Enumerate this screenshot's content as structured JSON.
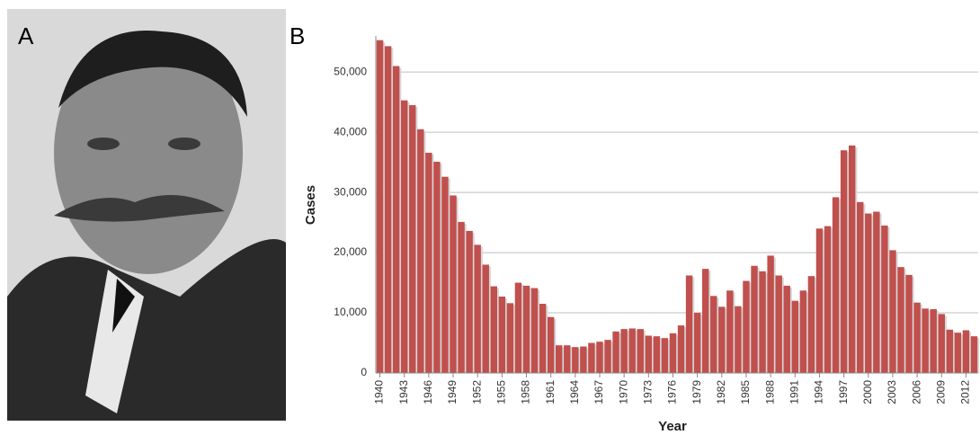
{
  "panel_labels": [
    "A",
    "B"
  ],
  "chart_data": {
    "type": "bar",
    "xlabel": "Year",
    "ylabel": "Cases",
    "x": [
      1940,
      1941,
      1942,
      1943,
      1944,
      1945,
      1946,
      1947,
      1948,
      1949,
      1950,
      1951,
      1952,
      1953,
      1954,
      1955,
      1956,
      1957,
      1958,
      1959,
      1960,
      1961,
      1962,
      1963,
      1964,
      1965,
      1966,
      1967,
      1968,
      1969,
      1970,
      1971,
      1972,
      1973,
      1974,
      1975,
      1976,
      1977,
      1978,
      1979,
      1980,
      1981,
      1982,
      1983,
      1984,
      1985,
      1986,
      1987,
      1988,
      1989,
      1990,
      1991,
      1992,
      1993,
      1994,
      1995,
      1996,
      1997,
      1998,
      1999,
      2000,
      2001,
      2002,
      2003,
      2004,
      2005,
      2006,
      2007,
      2008,
      2009,
      2010,
      2011,
      2012,
      2013
    ],
    "values": [
      55300,
      54300,
      51000,
      45300,
      44500,
      40500,
      36600,
      35100,
      32600,
      29500,
      25100,
      23600,
      21300,
      18000,
      14400,
      12700,
      11600,
      15000,
      14500,
      14100,
      11500,
      9300,
      4600,
      4600,
      4300,
      4400,
      5000,
      5200,
      5500,
      6900,
      7300,
      7400,
      7300,
      6200,
      6100,
      5800,
      6600,
      7900,
      16200,
      10000,
      17300,
      12800,
      11000,
      13700,
      11100,
      15300,
      17800,
      16900,
      19500,
      16200,
      14500,
      12000,
      13700,
      16100,
      24000,
      24400,
      29200,
      37000,
      37800,
      28400,
      26500,
      26800,
      24500,
      20400,
      17600,
      16300,
      11700,
      10700,
      10600,
      9800,
      7200,
      6700,
      7100,
      6100
    ],
    "color": "#c0504d",
    "xlim": [
      1939.5,
      2013.5
    ],
    "xticks": [
      1940,
      1943,
      1946,
      1949,
      1952,
      1955,
      1958,
      1961,
      1964,
      1967,
      1970,
      1973,
      1976,
      1979,
      1982,
      1985,
      1988,
      1991,
      1994,
      1997,
      2000,
      2003,
      2006,
      2009,
      2012
    ],
    "ylim": [
      0,
      56000
    ],
    "yticks": [
      0,
      {
        "value": 10000,
        "label": "10,000"
      },
      {
        "value": 20000,
        "label": "20,000"
      },
      {
        "value": 30000,
        "label": "30,000"
      },
      {
        "value": 40000,
        "label": "40,000"
      },
      {
        "value": 50000,
        "label": "50,000"
      }
    ],
    "grid": true
  }
}
